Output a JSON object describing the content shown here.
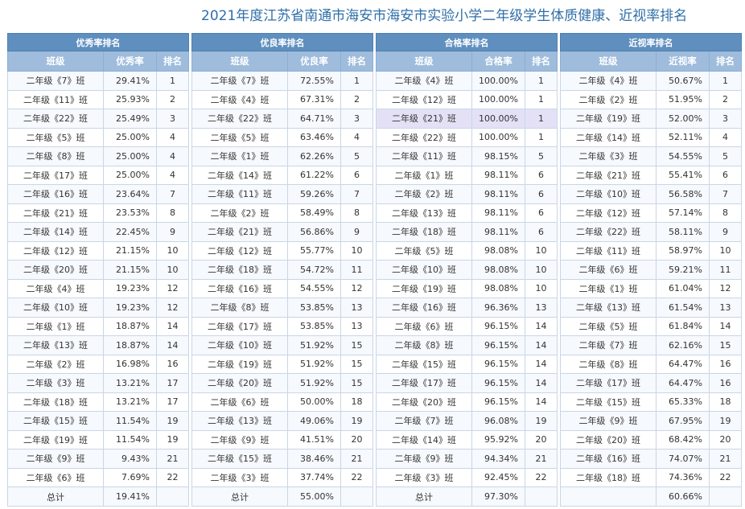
{
  "page_title": "2021年度江苏省南通市海安市海安市实验小学二年级学生体质健康、近视率排名",
  "tables": [
    {
      "title": "优秀率排名",
      "headers": [
        "班级",
        "优秀率",
        "排名"
      ],
      "rows": [
        [
          "二年级《7》班",
          "29.41%",
          "1"
        ],
        [
          "二年级《11》班",
          "25.93%",
          "2"
        ],
        [
          "二年级《22》班",
          "25.49%",
          "3"
        ],
        [
          "二年级《5》班",
          "25.00%",
          "4"
        ],
        [
          "二年级《8》班",
          "25.00%",
          "4"
        ],
        [
          "二年级《17》班",
          "25.00%",
          "4"
        ],
        [
          "二年级《16》班",
          "23.64%",
          "7"
        ],
        [
          "二年级《21》班",
          "23.53%",
          "8"
        ],
        [
          "二年级《14》班",
          "22.45%",
          "9"
        ],
        [
          "二年级《12》班",
          "21.15%",
          "10"
        ],
        [
          "二年级《20》班",
          "21.15%",
          "10"
        ],
        [
          "二年级《4》班",
          "19.23%",
          "12"
        ],
        [
          "二年级《10》班",
          "19.23%",
          "12"
        ],
        [
          "二年级《1》班",
          "18.87%",
          "14"
        ],
        [
          "二年级《13》班",
          "18.87%",
          "14"
        ],
        [
          "二年级《2》班",
          "16.98%",
          "16"
        ],
        [
          "二年级《3》班",
          "13.21%",
          "17"
        ],
        [
          "二年级《18》班",
          "13.21%",
          "17"
        ],
        [
          "二年级《15》班",
          "11.54%",
          "19"
        ],
        [
          "二年级《19》班",
          "11.54%",
          "19"
        ],
        [
          "二年级《9》班",
          "9.43%",
          "21"
        ],
        [
          "二年级《6》班",
          "7.69%",
          "22"
        ]
      ],
      "footer": [
        "总计",
        "19.41%",
        ""
      ]
    },
    {
      "title": "优良率排名",
      "headers": [
        "班级",
        "优良率",
        "排名"
      ],
      "rows": [
        [
          "二年级《7》班",
          "72.55%",
          "1"
        ],
        [
          "二年级《4》班",
          "67.31%",
          "2"
        ],
        [
          "二年级《22》班",
          "64.71%",
          "3"
        ],
        [
          "二年级《5》班",
          "63.46%",
          "4"
        ],
        [
          "二年级《1》班",
          "62.26%",
          "5"
        ],
        [
          "二年级《14》班",
          "61.22%",
          "6"
        ],
        [
          "二年级《11》班",
          "59.26%",
          "7"
        ],
        [
          "二年级《2》班",
          "58.49%",
          "8"
        ],
        [
          "二年级《21》班",
          "56.86%",
          "9"
        ],
        [
          "二年级《12》班",
          "55.77%",
          "10"
        ],
        [
          "二年级《18》班",
          "54.72%",
          "11"
        ],
        [
          "二年级《16》班",
          "54.55%",
          "12"
        ],
        [
          "二年级《8》班",
          "53.85%",
          "13"
        ],
        [
          "二年级《17》班",
          "53.85%",
          "13"
        ],
        [
          "二年级《10》班",
          "51.92%",
          "15"
        ],
        [
          "二年级《19》班",
          "51.92%",
          "15"
        ],
        [
          "二年级《20》班",
          "51.92%",
          "15"
        ],
        [
          "二年级《6》班",
          "50.00%",
          "18"
        ],
        [
          "二年级《13》班",
          "49.06%",
          "19"
        ],
        [
          "二年级《9》班",
          "41.51%",
          "20"
        ],
        [
          "二年级《15》班",
          "38.46%",
          "21"
        ],
        [
          "二年级《3》班",
          "37.74%",
          "22"
        ]
      ],
      "footer": [
        "总计",
        "55.00%",
        ""
      ]
    },
    {
      "title": "合格率排名",
      "headers": [
        "班级",
        "合格率",
        "排名"
      ],
      "rows": [
        [
          "二年级《4》班",
          "100.00%",
          "1"
        ],
        [
          "二年级《12》班",
          "100.00%",
          "1"
        ],
        [
          "二年级《21》班",
          "100.00%",
          "1"
        ],
        [
          "二年级《22》班",
          "100.00%",
          "1"
        ],
        [
          "二年级《11》班",
          "98.15%",
          "5"
        ],
        [
          "二年级《1》班",
          "98.11%",
          "6"
        ],
        [
          "二年级《2》班",
          "98.11%",
          "6"
        ],
        [
          "二年级《13》班",
          "98.11%",
          "6"
        ],
        [
          "二年级《18》班",
          "98.11%",
          "6"
        ],
        [
          "二年级《5》班",
          "98.08%",
          "10"
        ],
        [
          "二年级《10》班",
          "98.08%",
          "10"
        ],
        [
          "二年级《19》班",
          "98.08%",
          "10"
        ],
        [
          "二年级《16》班",
          "96.36%",
          "13"
        ],
        [
          "二年级《6》班",
          "96.15%",
          "14"
        ],
        [
          "二年级《8》班",
          "96.15%",
          "14"
        ],
        [
          "二年级《15》班",
          "96.15%",
          "14"
        ],
        [
          "二年级《17》班",
          "96.15%",
          "14"
        ],
        [
          "二年级《20》班",
          "96.15%",
          "14"
        ],
        [
          "二年级《7》班",
          "96.08%",
          "19"
        ],
        [
          "二年级《14》班",
          "95.92%",
          "20"
        ],
        [
          "二年级《9》班",
          "94.34%",
          "21"
        ],
        [
          "二年级《3》班",
          "92.45%",
          "22"
        ]
      ],
      "footer": [
        "总计",
        "97.30%",
        ""
      ],
      "highlight_row": 2
    },
    {
      "title": "近视率排名",
      "headers": [
        "班级",
        "近视率",
        "排名"
      ],
      "rows": [
        [
          "二年级《4》班",
          "50.67%",
          "1"
        ],
        [
          "二年级《2》班",
          "51.95%",
          "2"
        ],
        [
          "二年级《19》班",
          "52.00%",
          "3"
        ],
        [
          "二年级《14》班",
          "52.11%",
          "4"
        ],
        [
          "二年级《3》班",
          "54.55%",
          "5"
        ],
        [
          "二年级《21》班",
          "55.41%",
          "6"
        ],
        [
          "二年级《10》班",
          "56.58%",
          "7"
        ],
        [
          "二年级《12》班",
          "57.14%",
          "8"
        ],
        [
          "二年级《22》班",
          "58.11%",
          "9"
        ],
        [
          "二年级《11》班",
          "58.97%",
          "10"
        ],
        [
          "二年级《6》班",
          "59.21%",
          "11"
        ],
        [
          "二年级《1》班",
          "61.04%",
          "12"
        ],
        [
          "二年级《13》班",
          "61.54%",
          "13"
        ],
        [
          "二年级《5》班",
          "61.84%",
          "14"
        ],
        [
          "二年级《7》班",
          "62.16%",
          "15"
        ],
        [
          "二年级《8》班",
          "64.47%",
          "16"
        ],
        [
          "二年级《17》班",
          "64.47%",
          "16"
        ],
        [
          "二年级《15》班",
          "65.33%",
          "18"
        ],
        [
          "二年级《9》班",
          "67.95%",
          "19"
        ],
        [
          "二年级《20》班",
          "68.42%",
          "20"
        ],
        [
          "二年级《16》班",
          "74.07%",
          "21"
        ],
        [
          "二年级《18》班",
          "74.36%",
          "22"
        ]
      ],
      "footer": [
        "",
        "60.66%",
        ""
      ]
    }
  ]
}
